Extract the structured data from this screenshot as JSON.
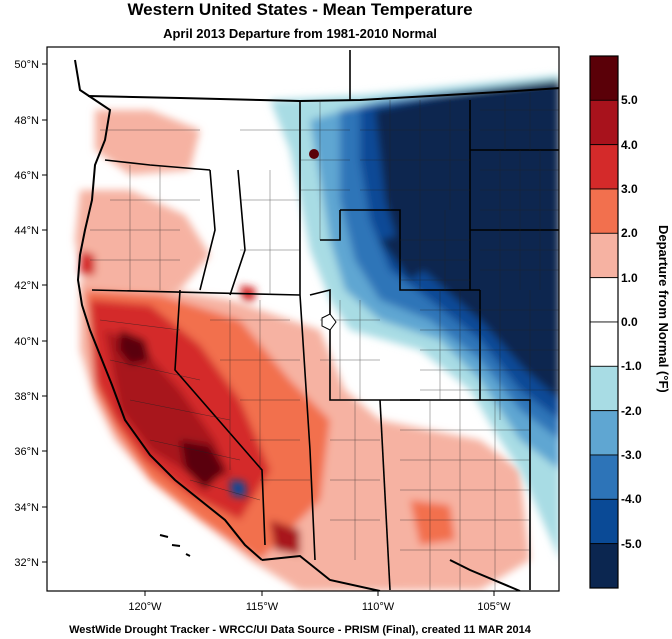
{
  "header": {
    "title": "Western United States - Mean Temperature",
    "subtitle": "April 2013  Departure from 1981-2010 Normal"
  },
  "footer": {
    "text": "WestWide Drought Tracker - WRCC/UI  Data Source - PRISM (Final), created 11 MAR 2014"
  },
  "map": {
    "lat_labels": [
      "50°N",
      "48°N",
      "46°N",
      "44°N",
      "42°N",
      "40°N",
      "38°N",
      "36°N",
      "34°N",
      "32°N"
    ],
    "lon_labels": [
      "120°W",
      "115°W",
      "110°W",
      "105°W"
    ]
  },
  "legend": {
    "title": "Departure from Normal (°F)",
    "tick_labels": [
      "5.0",
      "4.0",
      "3.0",
      "2.0",
      "1.0",
      "0.0",
      "-1.0",
      "-2.0",
      "-3.0",
      "-4.0",
      "-5.0"
    ],
    "colors": [
      "#5a0008",
      "#a8121c",
      "#d42a2a",
      "#f2704e",
      "#f6b2a2",
      "#ffffff",
      "#ffffff",
      "#a8dce4",
      "#5fa6d2",
      "#2d74b8",
      "#0a4a96",
      "#0b2650"
    ]
  }
}
